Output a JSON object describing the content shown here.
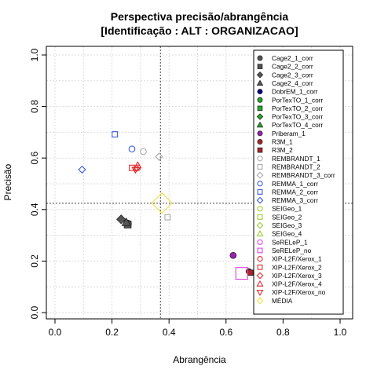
{
  "chart_data": {
    "type": "scatter",
    "title": [
      "Perspectiva precisão/abrangência",
      "[Identificação : ALT : ORGANIZACAO]"
    ],
    "xlabel": "Abrangência",
    "ylabel": "Precisão",
    "xlim": [
      0,
      1
    ],
    "ylim": [
      0,
      1
    ],
    "xticks": [
      "0.0",
      "0.2",
      "0.4",
      "0.6",
      "0.8",
      "1.0"
    ],
    "yticks": [
      "0.0",
      "0.2",
      "0.4",
      "0.6",
      "0.8",
      "1.0"
    ],
    "grid": true,
    "reference_lines": {
      "x": 0.37,
      "y": 0.425
    },
    "legend_position": "top-right",
    "series": [
      {
        "name": "Cage2_1_corr",
        "color": "#555555",
        "shape": "circle-filled",
        "points": [
          [
            0.255,
            0.345
          ]
        ]
      },
      {
        "name": "Cage2_2_corr",
        "color": "#555555",
        "shape": "square-filled",
        "points": [
          [
            0.255,
            0.342
          ]
        ]
      },
      {
        "name": "Cage2_3_corr",
        "color": "#555555",
        "shape": "diamond-filled",
        "points": [
          [
            0.232,
            0.362
          ]
        ]
      },
      {
        "name": "Cage2_4_corr",
        "color": "#555555",
        "shape": "triangle-filled",
        "points": [
          [
            0.25,
            0.35
          ]
        ]
      },
      {
        "name": "DobrEM_1_corr",
        "color": "#00008B",
        "shape": "circle-filled",
        "points": []
      },
      {
        "name": "PorTexTO_1_corr",
        "color": "#22AA22",
        "shape": "circle-filled",
        "points": []
      },
      {
        "name": "PorTexTO_2_corr",
        "color": "#22AA22",
        "shape": "square-filled",
        "points": []
      },
      {
        "name": "PorTexTO_3_corr",
        "color": "#22AA22",
        "shape": "diamond-filled",
        "points": []
      },
      {
        "name": "PorTexTO_4_corr",
        "color": "#22AA22",
        "shape": "triangle-filled",
        "points": []
      },
      {
        "name": "Priberam_1",
        "color": "#9B1FB5",
        "shape": "circle-filled",
        "points": [
          [
            0.625,
            0.222
          ]
        ]
      },
      {
        "name": "R3M_1",
        "color": "#B22222",
        "shape": "circle-filled",
        "points": [
          [
            0.68,
            0.16
          ]
        ]
      },
      {
        "name": "R3M_2",
        "color": "#B22222",
        "shape": "square-filled",
        "points": [
          [
            0.685,
            0.155
          ]
        ]
      },
      {
        "name": "REMBRANDT_1",
        "color": "#AAAAAA",
        "shape": "circle-open",
        "points": [
          [
            0.31,
            0.625
          ]
        ]
      },
      {
        "name": "REMBRANDT_2",
        "color": "#AAAAAA",
        "shape": "square-open",
        "points": [
          [
            0.395,
            0.37
          ]
        ]
      },
      {
        "name": "REMBRANDT_3_corr",
        "color": "#AAAAAA",
        "shape": "diamond-open",
        "points": [
          [
            0.365,
            0.605
          ]
        ]
      },
      {
        "name": "REMMA_1_corr",
        "color": "#3A5BE0",
        "shape": "circle-open",
        "points": [
          [
            0.27,
            0.635
          ]
        ]
      },
      {
        "name": "REMMA_2_corr",
        "color": "#3A5BE0",
        "shape": "square-open",
        "points": [
          [
            0.21,
            0.692
          ]
        ]
      },
      {
        "name": "REMMA_3_corr",
        "color": "#3A5BE0",
        "shape": "diamond-open",
        "points": [
          [
            0.095,
            0.555
          ]
        ]
      },
      {
        "name": "SEIGeo_1",
        "color": "#9ACD32",
        "shape": "circle-open",
        "points": []
      },
      {
        "name": "SEIGeo_2",
        "color": "#9ACD32",
        "shape": "square-open",
        "points": []
      },
      {
        "name": "SEIGeo_3",
        "color": "#9ACD32",
        "shape": "diamond-open",
        "points": []
      },
      {
        "name": "SEIGeo_4",
        "color": "#9ACD32",
        "shape": "triangle-open",
        "points": []
      },
      {
        "name": "SeRELeP_1",
        "color": "#E040E0",
        "shape": "circle-open",
        "points": []
      },
      {
        "name": "SeRELeP_no",
        "color": "#E040E0",
        "shape": "square-open",
        "points": [
          [
            0.655,
            0.152
          ]
        ]
      },
      {
        "name": "XIP-L2F/Xerox_1",
        "color": "#E03030",
        "shape": "circle-open",
        "points": [
          [
            0.29,
            0.562
          ]
        ]
      },
      {
        "name": "XIP-L2F/Xerox_2",
        "color": "#E03030",
        "shape": "square-open",
        "points": [
          [
            0.27,
            0.562
          ]
        ]
      },
      {
        "name": "XIP-L2F/Xerox_3",
        "color": "#E03030",
        "shape": "diamond-open",
        "points": [
          [
            0.285,
            0.56
          ]
        ]
      },
      {
        "name": "XIP-L2F/Xerox_4",
        "color": "#E03030",
        "shape": "triangle-open",
        "points": [
          [
            0.29,
            0.572
          ]
        ]
      },
      {
        "name": "XIP-L2F/Xerox_no",
        "color": "#E03030",
        "shape": "triangle-down-open",
        "points": [
          [
            0.282,
            0.555
          ]
        ]
      },
      {
        "name": "MÉDIA",
        "color": "#F0E040",
        "shape": "diamond-open-large",
        "points": [
          [
            0.375,
            0.425
          ]
        ]
      }
    ]
  }
}
